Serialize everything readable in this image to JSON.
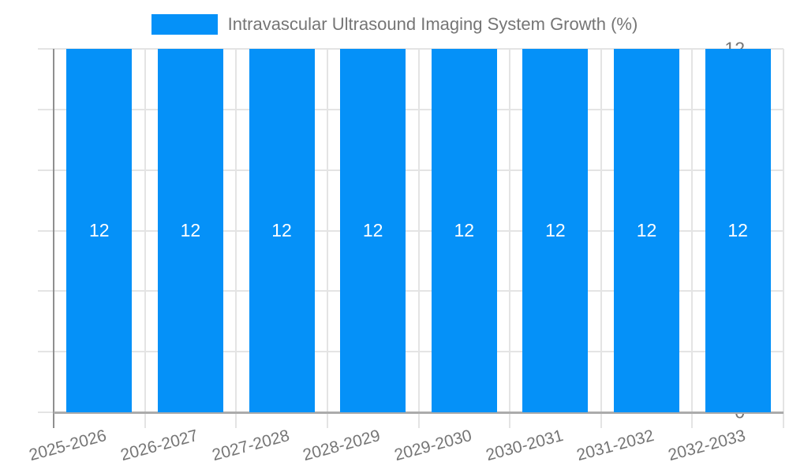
{
  "chart_data": {
    "type": "bar",
    "title": "Intravascular Ultrasound Imaging System Growth (%)",
    "categories": [
      "2025-2026",
      "2026-2027",
      "2027-2028",
      "2028-2029",
      "2029-2030",
      "2030-2031",
      "2031-2032",
      "2032-2033"
    ],
    "series": [
      {
        "name": "Intravascular Ultrasound Imaging System Growth (%)",
        "values": [
          12,
          12,
          12,
          12,
          12,
          12,
          12,
          12
        ]
      }
    ],
    "bar_value_labels": [
      "12",
      "12",
      "12",
      "12",
      "12",
      "12",
      "12",
      "12"
    ],
    "xlabel": "",
    "ylabel": "",
    "ylim": [
      0,
      12
    ],
    "yticks": [
      0,
      2,
      4,
      6,
      8,
      10,
      12
    ],
    "grid": true,
    "legend_position": "top",
    "colors": {
      "bar": "#0591f8",
      "bar_label": "#ffffff",
      "axis_text": "#757575",
      "grid_line": "#e4e4e4",
      "y_axis_line": "#8f8f8f",
      "x_axis_line": "#ababab",
      "background": "#ffffff"
    }
  }
}
